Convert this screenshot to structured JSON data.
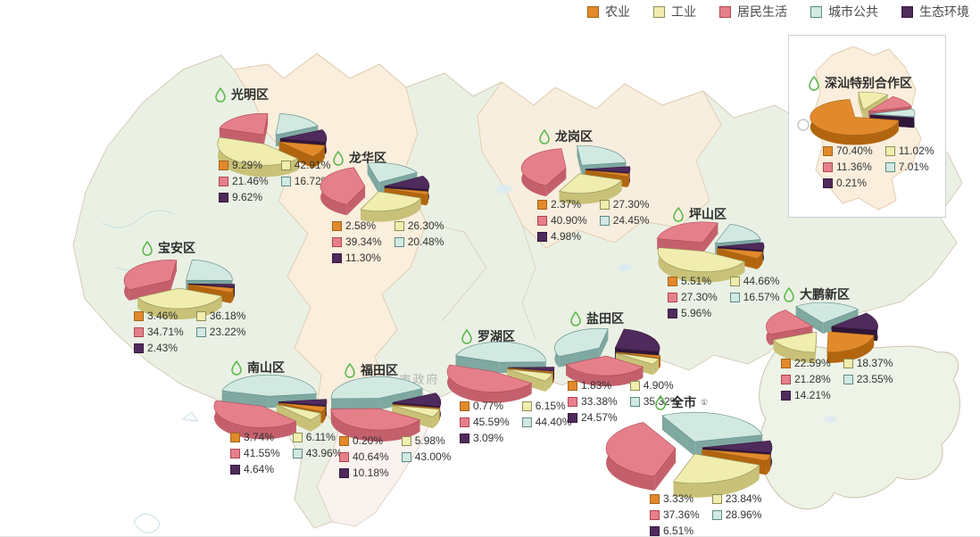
{
  "legend": {
    "items": [
      {
        "label": "农业",
        "fill": "#E28A2B",
        "border": "#A2641C",
        "side": "#B2650F"
      },
      {
        "label": "工业",
        "fill": "#F0EDAE",
        "border": "#8E8E55",
        "side": "#C8C177"
      },
      {
        "label": "居民生活",
        "fill": "#E5808B",
        "border": "#B04552",
        "side": "#C4606C"
      },
      {
        "label": "城市公共",
        "fill": "#D2E9E2",
        "border": "#5C8A86",
        "side": "#7FA8A1"
      },
      {
        "label": "生态环境",
        "fill": "#4F2A5C",
        "border": "#38193F",
        "side": "#2F1638"
      }
    ]
  },
  "map": {
    "watermark_label": "市政府"
  },
  "chart_data": [
    {
      "id": "guangming",
      "type": "pie",
      "title": "光明区",
      "title_suffix": "",
      "categories": [
        "农业",
        "工业",
        "居民生活",
        "城市公共",
        "生态环境"
      ],
      "values": [
        9.29,
        42.91,
        21.46,
        16.72,
        9.62
      ],
      "labels": [
        "9.29%",
        "42.91%",
        "21.46%",
        "16.72%",
        "9.62%"
      ]
    },
    {
      "id": "longhua",
      "type": "pie",
      "title": "龙华区",
      "title_suffix": "",
      "categories": [
        "农业",
        "工业",
        "居民生活",
        "城市公共",
        "生态环境"
      ],
      "values": [
        2.58,
        26.3,
        39.34,
        20.48,
        11.3
      ],
      "labels": [
        "2.58%",
        "26.30%",
        "39.34%",
        "20.48%",
        "11.30%"
      ]
    },
    {
      "id": "longgang",
      "type": "pie",
      "title": "龙岗区",
      "title_suffix": "",
      "categories": [
        "农业",
        "工业",
        "居民生活",
        "城市公共",
        "生态环境"
      ],
      "values": [
        2.37,
        27.3,
        40.9,
        24.45,
        4.98
      ],
      "labels": [
        "2.37%",
        "27.30%",
        "40.90%",
        "24.45%",
        "4.98%"
      ]
    },
    {
      "id": "pingshan",
      "type": "pie",
      "title": "坪山区",
      "title_suffix": "",
      "categories": [
        "农业",
        "工业",
        "居民生活",
        "城市公共",
        "生态环境"
      ],
      "values": [
        5.51,
        44.66,
        27.3,
        16.57,
        5.96
      ],
      "labels": [
        "5.51%",
        "44.66%",
        "27.30%",
        "16.57%",
        "5.96%"
      ]
    },
    {
      "id": "baoan",
      "type": "pie",
      "title": "宝安区",
      "title_suffix": "",
      "categories": [
        "农业",
        "工业",
        "居民生活",
        "城市公共",
        "生态环境"
      ],
      "values": [
        3.46,
        36.18,
        34.71,
        23.22,
        2.43
      ],
      "labels": [
        "3.46%",
        "36.18%",
        "34.71%",
        "23.22%",
        "2.43%"
      ]
    },
    {
      "id": "dapeng",
      "type": "pie",
      "title": "大鹏新区",
      "title_suffix": "",
      "categories": [
        "农业",
        "工业",
        "居民生活",
        "城市公共",
        "生态环境"
      ],
      "values": [
        22.59,
        18.37,
        21.28,
        23.55,
        14.21
      ],
      "labels": [
        "22.59%",
        "18.37%",
        "21.28%",
        "23.55%",
        "14.21%"
      ]
    },
    {
      "id": "nanshan",
      "type": "pie",
      "title": "南山区",
      "title_suffix": "",
      "categories": [
        "农业",
        "工业",
        "居民生活",
        "城市公共",
        "生态环境"
      ],
      "values": [
        3.74,
        6.11,
        41.55,
        43.96,
        4.64
      ],
      "labels": [
        "3.74%",
        "6.11%",
        "41.55%",
        "43.96%",
        "4.64%"
      ]
    },
    {
      "id": "futian",
      "type": "pie",
      "title": "福田区",
      "title_suffix": "",
      "categories": [
        "农业",
        "工业",
        "居民生活",
        "城市公共",
        "生态环境"
      ],
      "values": [
        0.2,
        5.98,
        40.64,
        43.0,
        10.18
      ],
      "labels": [
        "0.20%",
        "5.98%",
        "40.64%",
        "43.00%",
        "10.18%"
      ]
    },
    {
      "id": "luohu",
      "type": "pie",
      "title": "罗湖区",
      "title_suffix": "",
      "categories": [
        "农业",
        "工业",
        "居民生活",
        "城市公共",
        "生态环境"
      ],
      "values": [
        0.77,
        6.15,
        45.59,
        44.4,
        3.09
      ],
      "labels": [
        "0.77%",
        "6.15%",
        "45.59%",
        "44.40%",
        "3.09%"
      ]
    },
    {
      "id": "yantian",
      "type": "pie",
      "title": "盐田区",
      "title_suffix": "",
      "categories": [
        "农业",
        "工业",
        "居民生活",
        "城市公共",
        "生态环境"
      ],
      "values": [
        1.83,
        4.9,
        33.38,
        35.32,
        24.57
      ],
      "labels": [
        "1.83%",
        "4.90%",
        "33.38%",
        "35.32%",
        "24.57%"
      ]
    },
    {
      "id": "quanshi",
      "type": "pie",
      "title": "全市",
      "title_suffix": "①",
      "categories": [
        "农业",
        "工业",
        "居民生活",
        "城市公共",
        "生态环境"
      ],
      "values": [
        3.33,
        23.84,
        37.36,
        28.96,
        6.51
      ],
      "labels": [
        "3.33%",
        "23.84%",
        "37.36%",
        "28.96%",
        "6.51%"
      ]
    },
    {
      "id": "shenshan",
      "type": "pie",
      "title": "深汕特别合作区",
      "title_suffix": "",
      "categories": [
        "农业",
        "工业",
        "居民生活",
        "城市公共",
        "生态环境"
      ],
      "values": [
        70.4,
        11.02,
        11.36,
        7.01,
        0.21
      ],
      "labels": [
        "70.40%",
        "11.02%",
        "11.36%",
        "7.01%",
        "0.21%"
      ]
    }
  ]
}
